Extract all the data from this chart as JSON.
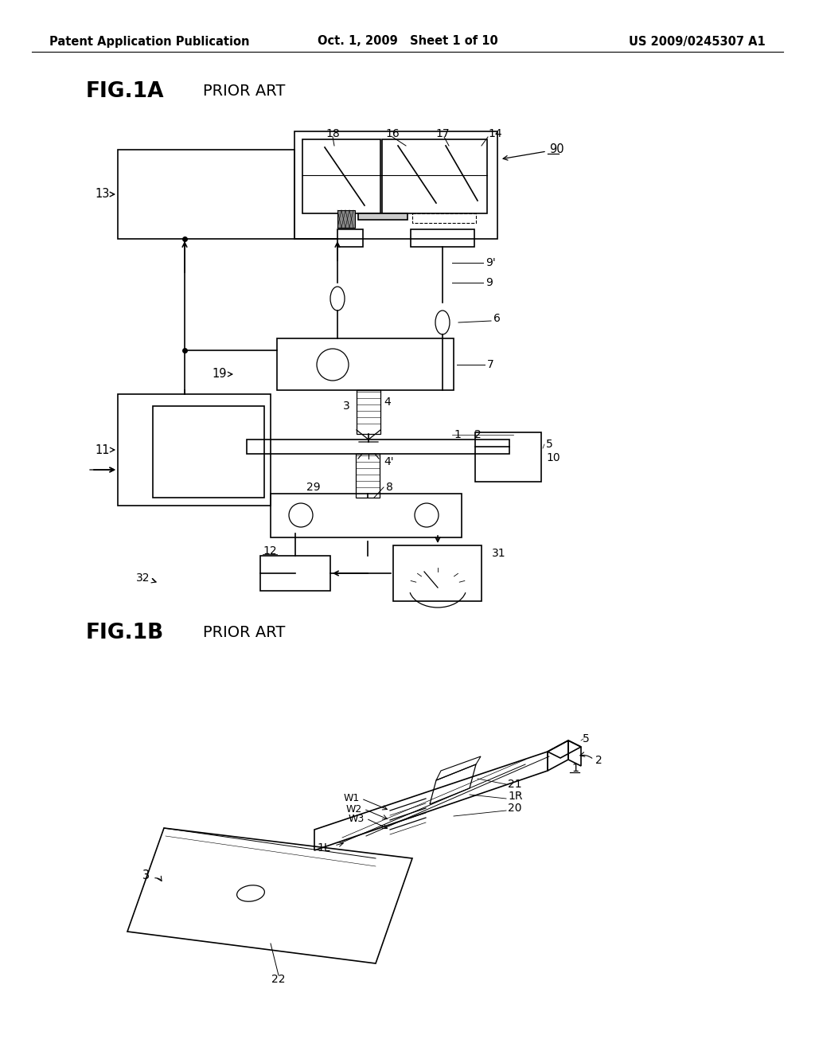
{
  "bg_color": "#ffffff",
  "line_color": "#000000",
  "header_left": "Patent Application Publication",
  "header_center": "Oct. 1, 2009   Sheet 1 of 10",
  "header_right": "US 2009/0245307 A1"
}
